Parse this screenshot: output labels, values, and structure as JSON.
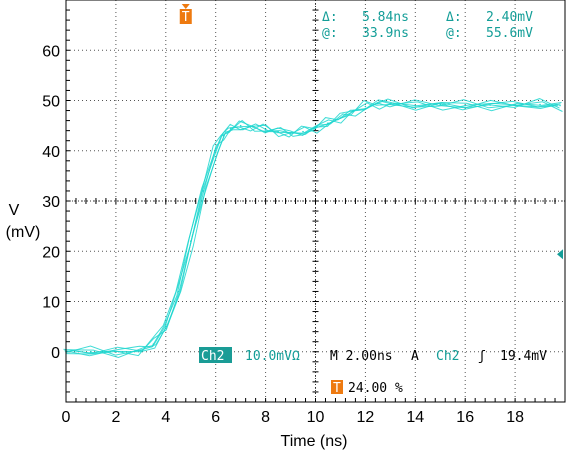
{
  "chart_data": {
    "type": "line",
    "title": "",
    "xlabel": "Time (ns)",
    "ylabel_line1": "V",
    "ylabel_line2": "(mV)",
    "xlim": [
      0,
      20
    ],
    "ylim": [
      -10,
      70
    ],
    "xticks": [
      0,
      2,
      4,
      6,
      8,
      10,
      12,
      14,
      16,
      18
    ],
    "yticks": [
      0,
      10,
      20,
      30,
      40,
      50,
      60
    ],
    "grid": "dotted",
    "trace_color": "#1fd6cf",
    "series": [
      {
        "x": [
          0,
          1,
          2,
          3,
          3.5,
          4,
          4.5,
          5,
          5.5,
          6,
          6.3,
          6.6,
          7,
          7.5,
          8,
          8.5,
          9,
          9.5,
          10,
          10.5,
          11,
          11.5,
          12,
          12.5,
          13,
          14,
          15,
          16,
          17,
          18,
          19,
          19.8
        ],
        "values": [
          0,
          0,
          0,
          0.3,
          1.5,
          5,
          12,
          22,
          32,
          40,
          43,
          44.5,
          45,
          44.7,
          44.2,
          43.8,
          43.5,
          43.8,
          44.5,
          45.5,
          46.5,
          47.8,
          48.8,
          49.4,
          49.3,
          49,
          49.2,
          49,
          49.1,
          49,
          49.2,
          49
        ]
      }
    ],
    "cursor_readout": {
      "delta_x_symbol": "Δ:",
      "delta_x_value": "5.84ns",
      "delta_y_symbol": "Δ:",
      "delta_y_value": "2.40mV",
      "at_x_symbol": "@:",
      "at_x_value": "33.9ns",
      "at_y_symbol": "@:",
      "at_y_value": "55.6mV"
    },
    "scope_status": {
      "channel_badge": "Ch2",
      "scale": "10.0mVΩ",
      "timebase": "M 2.00ns",
      "trigger_mode": "A",
      "trigger_channel": "Ch2",
      "trigger_slope_symbol": "ʃ",
      "trigger_level": "19.4mV",
      "trigger_marker": "T",
      "trigger_position": "24.00 %"
    },
    "trigger_time_marker": 4.8,
    "trigger_level_value": 19.4,
    "colors": {
      "trace": "#1fd6cf",
      "readout": "#149e98",
      "badge_bg": "#1a9c96",
      "trigger_orange": "#ee7a10"
    }
  }
}
